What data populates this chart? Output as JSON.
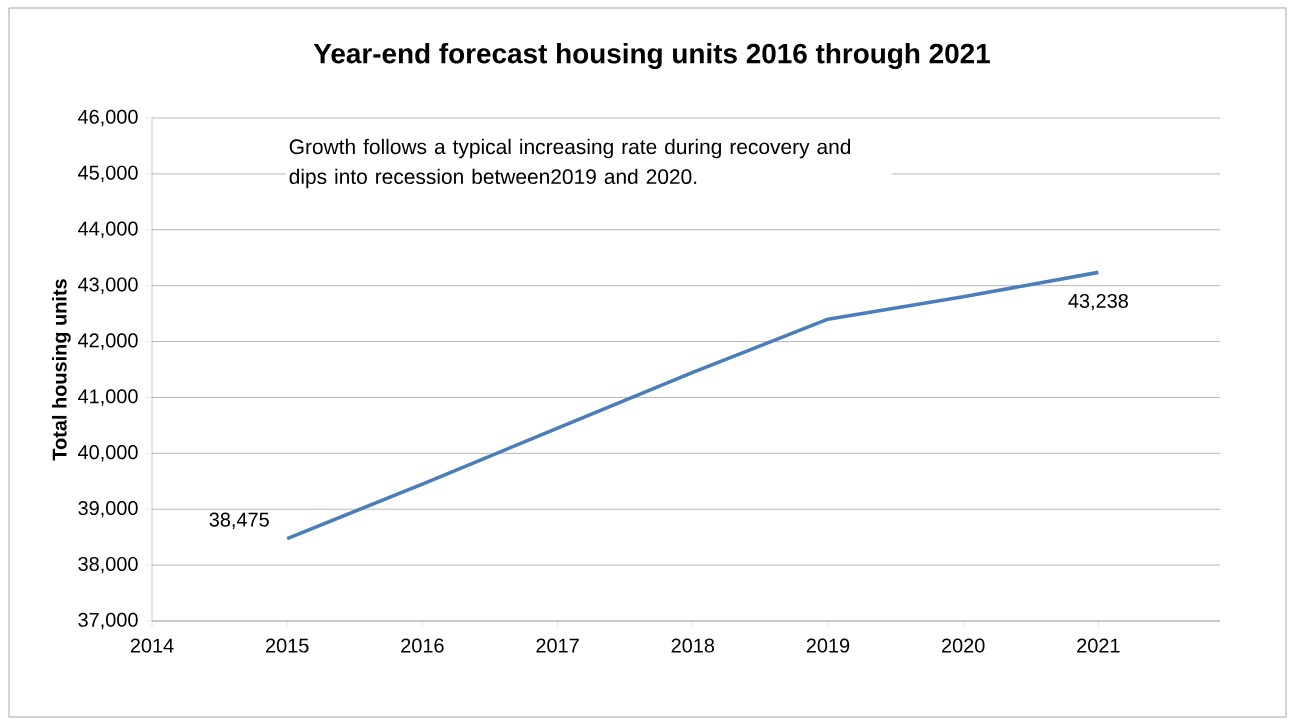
{
  "chart_data": {
    "type": "line",
    "title": "Year-end forecast housing units 2016 through 2021",
    "ylabel": "Total housing units",
    "x": [
      2015,
      2016,
      2017,
      2018,
      2019,
      2020,
      2021
    ],
    "series": [
      {
        "color": "#4a7ebb",
        "values": [
          38475,
          39450,
          40450,
          41450,
          42400,
          42800,
          43238
        ],
        "value_labels": [
          "38,475",
          null,
          null,
          null,
          null,
          null,
          "43,238"
        ]
      }
    ],
    "xlim": [
      2014,
      2021.9
    ],
    "xticks": [
      2014,
      2015,
      2016,
      2017,
      2018,
      2019,
      2020,
      2021
    ],
    "ylim": [
      37000,
      46000
    ],
    "yticks": [
      {
        "value": 37000,
        "label": "37,000"
      },
      {
        "value": 38000,
        "label": "38,000"
      },
      {
        "value": 39000,
        "label": "39,000"
      },
      {
        "value": 40000,
        "label": "40,000"
      },
      {
        "value": 41000,
        "label": "41,000"
      },
      {
        "value": 42000,
        "label": "42,000"
      },
      {
        "value": 43000,
        "label": "43,000"
      },
      {
        "value": 44000,
        "label": "44,000"
      },
      {
        "value": 45000,
        "label": "45,000"
      },
      {
        "value": 46000,
        "label": "46,000"
      }
    ],
    "grid": "y",
    "marker": "none",
    "line_style": "solid",
    "annotations": [
      "Growth follows a typical increasing rate during recovery and dips into recession between2019 and 2020."
    ]
  }
}
